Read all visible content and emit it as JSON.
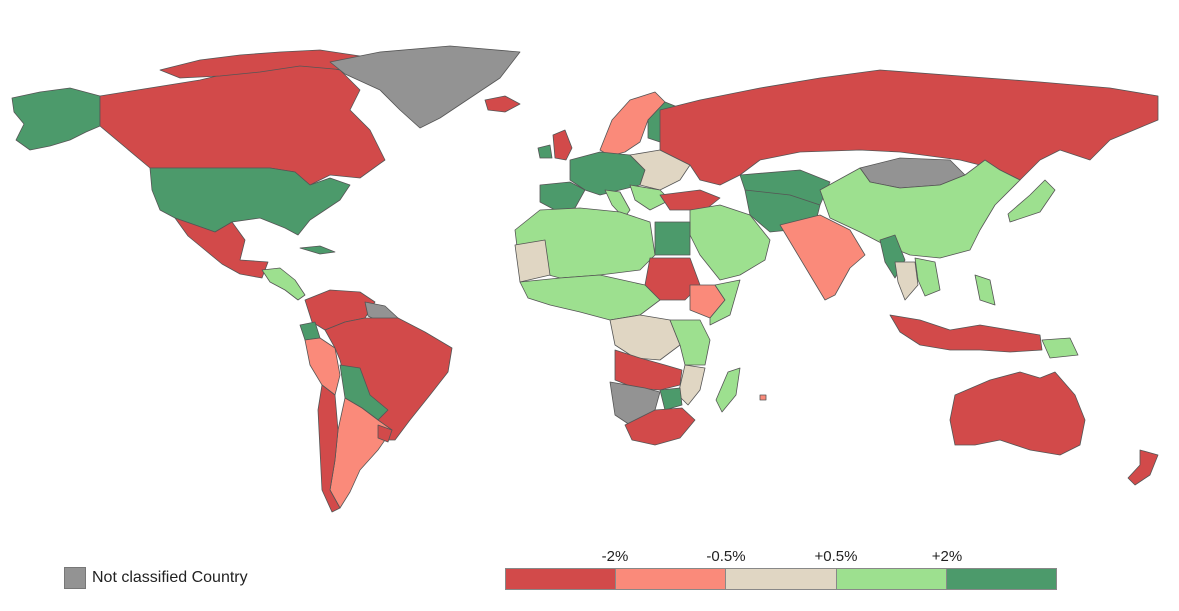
{
  "map": {
    "colors": {
      "strong_negative": "#d24a4a",
      "negative": "#fa8a7a",
      "neutral": "#e0d6c3",
      "positive": "#9de08f",
      "strong_positive": "#4c9a6b",
      "not_classified": "#939393"
    }
  },
  "legend": {
    "not_classified_label": "Not classified Country",
    "scale_ticks": [
      "-2%",
      "-0.5%",
      "+0.5%",
      "+2%"
    ],
    "bins": [
      "strong_negative",
      "negative",
      "neutral",
      "positive",
      "strong_positive"
    ]
  }
}
